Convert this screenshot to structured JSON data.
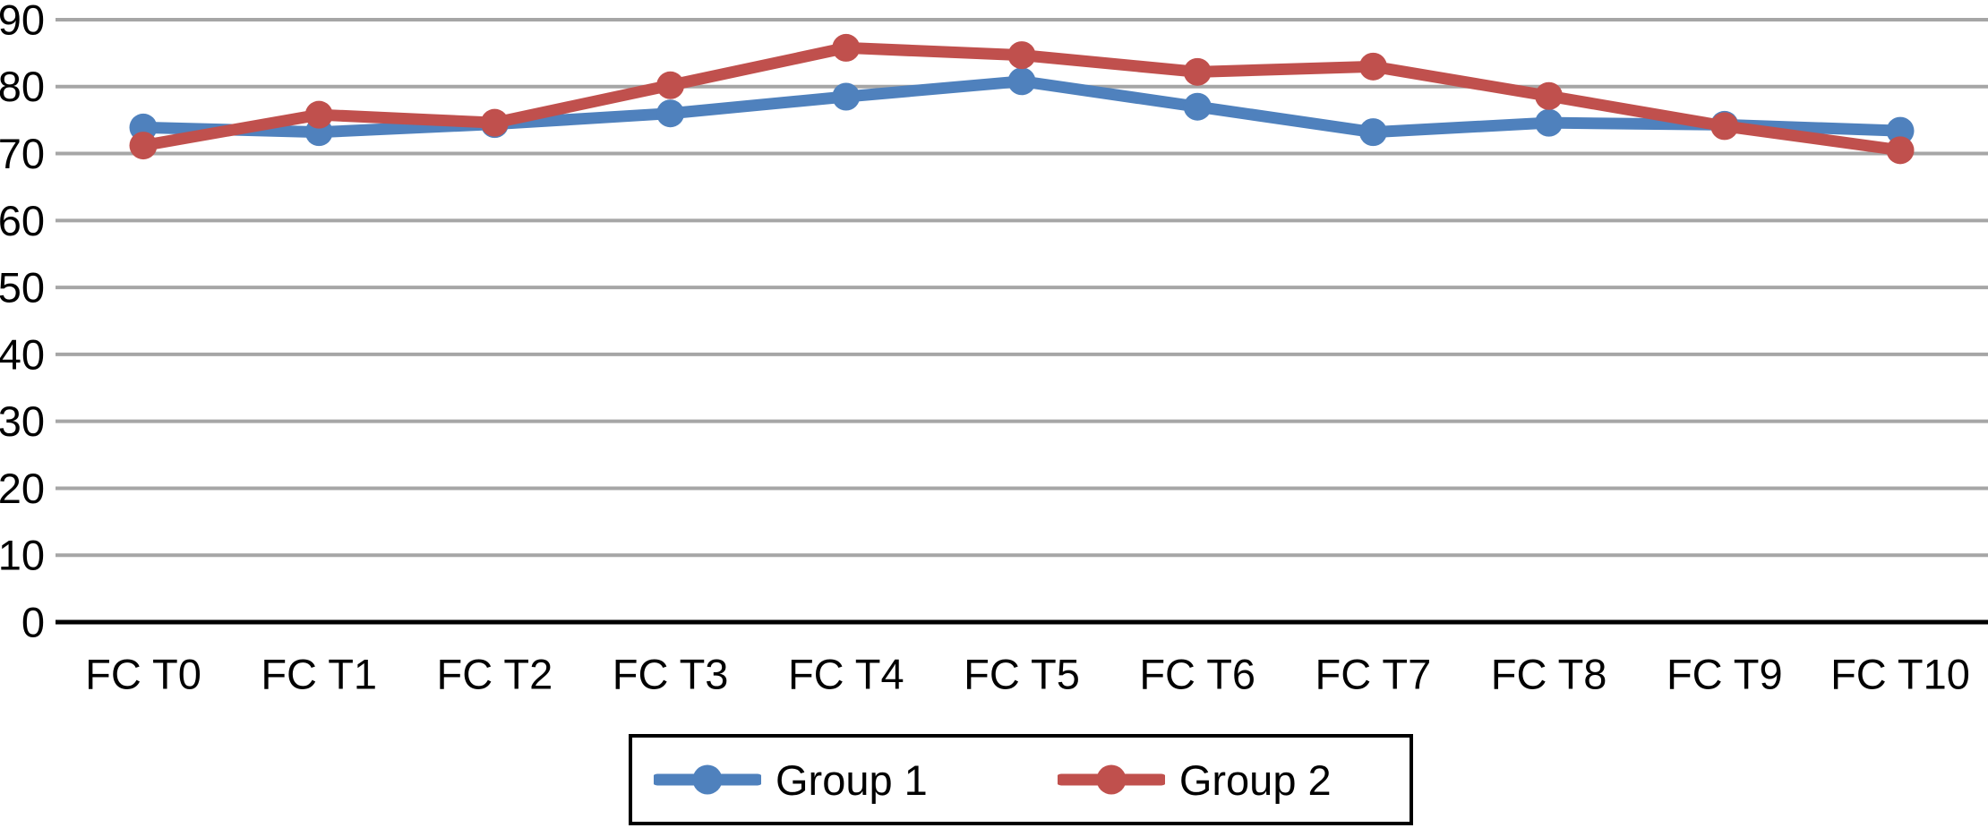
{
  "chart_data": {
    "type": "line",
    "categories": [
      "FC T0",
      "FC T1",
      "FC T2",
      "FC T3",
      "FC T4",
      "FC T5",
      "FC T6",
      "FC T7",
      "FC T8",
      "FC T9",
      "FC T10"
    ],
    "series": [
      {
        "name": "Group 1",
        "color": "#4f81bd",
        "values": [
          73.9,
          73.2,
          74.4,
          76.0,
          78.5,
          80.8,
          77.0,
          73.2,
          74.6,
          74.3,
          73.4
        ]
      },
      {
        "name": "Group 2",
        "color": "#c0504d",
        "values": [
          71.2,
          75.8,
          74.6,
          80.2,
          85.8,
          84.7,
          82.2,
          83.0,
          78.6,
          74.1,
          70.5
        ]
      }
    ],
    "ylim": [
      0,
      90
    ],
    "yticks": [
      0,
      10,
      20,
      30,
      40,
      50,
      60,
      70,
      80,
      90
    ],
    "grid": "horizontal",
    "gridline_color": "#a6a6a6",
    "axis_color": "#000000",
    "text_color": "#000000",
    "background_color": "#ffffff",
    "legend": {
      "position": "bottom-center",
      "border_color": "#000000"
    }
  }
}
